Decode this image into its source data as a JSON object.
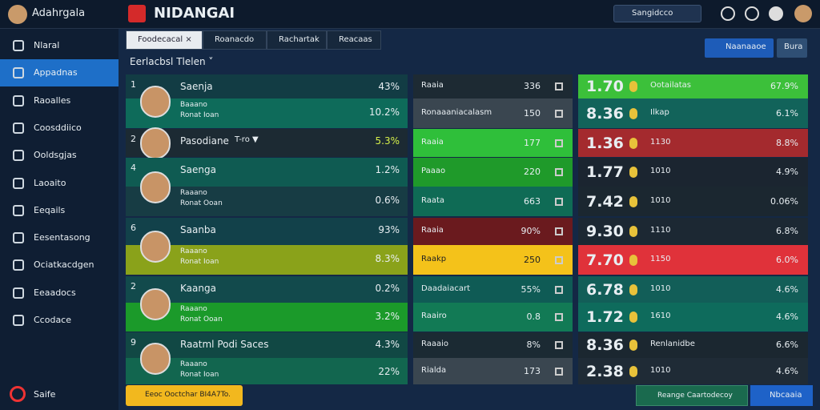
{
  "header": {
    "user": "Adahrgala",
    "brand": "NIDANGAI",
    "search": "Sangidcco"
  },
  "sidebar": {
    "items": [
      "Nlaral",
      "Appadnas",
      "Raoalles",
      "Coosddiico",
      "Ooldsgjas",
      "Laoaito",
      "Eeqails",
      "Eesentasong",
      "Ociatkacdgen",
      "Eeaadocs",
      "Ccodace"
    ],
    "footer": "Saife"
  },
  "tabs": [
    "Foodecacal ×",
    "Roanacdo",
    "Rachartak",
    "Reacaas"
  ],
  "actions": [
    "Naanaaoe",
    "Bura"
  ],
  "section_title": "Eerlacbsl Tlelen ˅",
  "players": [
    {
      "rank": "1",
      "name": "Saenja",
      "value": "43%",
      "sub_label": "Baaano",
      "sub_note": "Ronat Ioan",
      "sub_value": "10.2%"
    },
    {
      "rank": "2",
      "name": "Pasodiane",
      "note": "T-ro ▼",
      "value": "5.3%"
    },
    {
      "rank": "4",
      "name": "Saenga",
      "value": "1.2%",
      "sub_label": "Raaano",
      "sub_note": "Ronat Ooan",
      "sub_value": "0.6%"
    },
    {
      "rank": "6",
      "name": "Saanba",
      "value": "93%",
      "sub_label": "Raaano",
      "sub_note": "Ronat Ioan",
      "sub_value": "8.3%"
    },
    {
      "rank": "2",
      "name": "Kaanga",
      "value": "0.2%",
      "sub_label": "Raaano",
      "sub_note": "Ronat Ooan",
      "sub_value": "3.2%"
    },
    {
      "rank": "9",
      "name": "Raatml Podi Saces",
      "value": "4.3%",
      "sub_label": "Raaano",
      "sub_note": "Ronat Ioan",
      "sub_value": "22%"
    }
  ],
  "markets": [
    {
      "label": "Raaia",
      "value": "336"
    },
    {
      "label": "Ronaaaniacalasm",
      "value": "150"
    },
    {
      "label": "Raaia",
      "value": "177"
    },
    {
      "label": "Paaao",
      "value": "220"
    },
    {
      "label": "Raata",
      "value": "663"
    },
    {
      "label": "Raaia",
      "value": "90%"
    },
    {
      "label": "Raakp",
      "value": "250"
    },
    {
      "label": "Daadaiacart",
      "value": "55%"
    },
    {
      "label": "Raairo",
      "value": "0.8"
    },
    {
      "label": "Raaaio",
      "value": "8%"
    },
    {
      "label": "Rialda",
      "value": "173"
    }
  ],
  "odds": [
    {
      "odd": "1.70",
      "label": "Ootailatas",
      "value": "67.9%"
    },
    {
      "odd": "8.36",
      "label": "Ilkap",
      "value": "6.1%"
    },
    {
      "odd": "1.36",
      "label": "1130",
      "value": "8.8%"
    },
    {
      "odd": "1.77",
      "label": "1010",
      "value": "4.9%"
    },
    {
      "odd": "7.42",
      "label": "1010",
      "value": "0.06%"
    },
    {
      "odd": "9.30",
      "label": "1110",
      "value": "6.8%"
    },
    {
      "odd": "7.70",
      "label": "1150",
      "value": "6.0%"
    },
    {
      "odd": "6.78",
      "label": "1010",
      "value": "4.6%"
    },
    {
      "odd": "1.72",
      "label": "1610",
      "value": "4.6%"
    },
    {
      "odd": "8.36",
      "label": "Renlanidbe",
      "value": "6.6%"
    },
    {
      "odd": "2.38",
      "label": "1010",
      "value": "4.6%"
    }
  ],
  "footer": {
    "notice": "Eeoc Ooctchar BI4A7To.",
    "confirm": "Reange Caartodecoy",
    "action": "Nbcaaia"
  }
}
